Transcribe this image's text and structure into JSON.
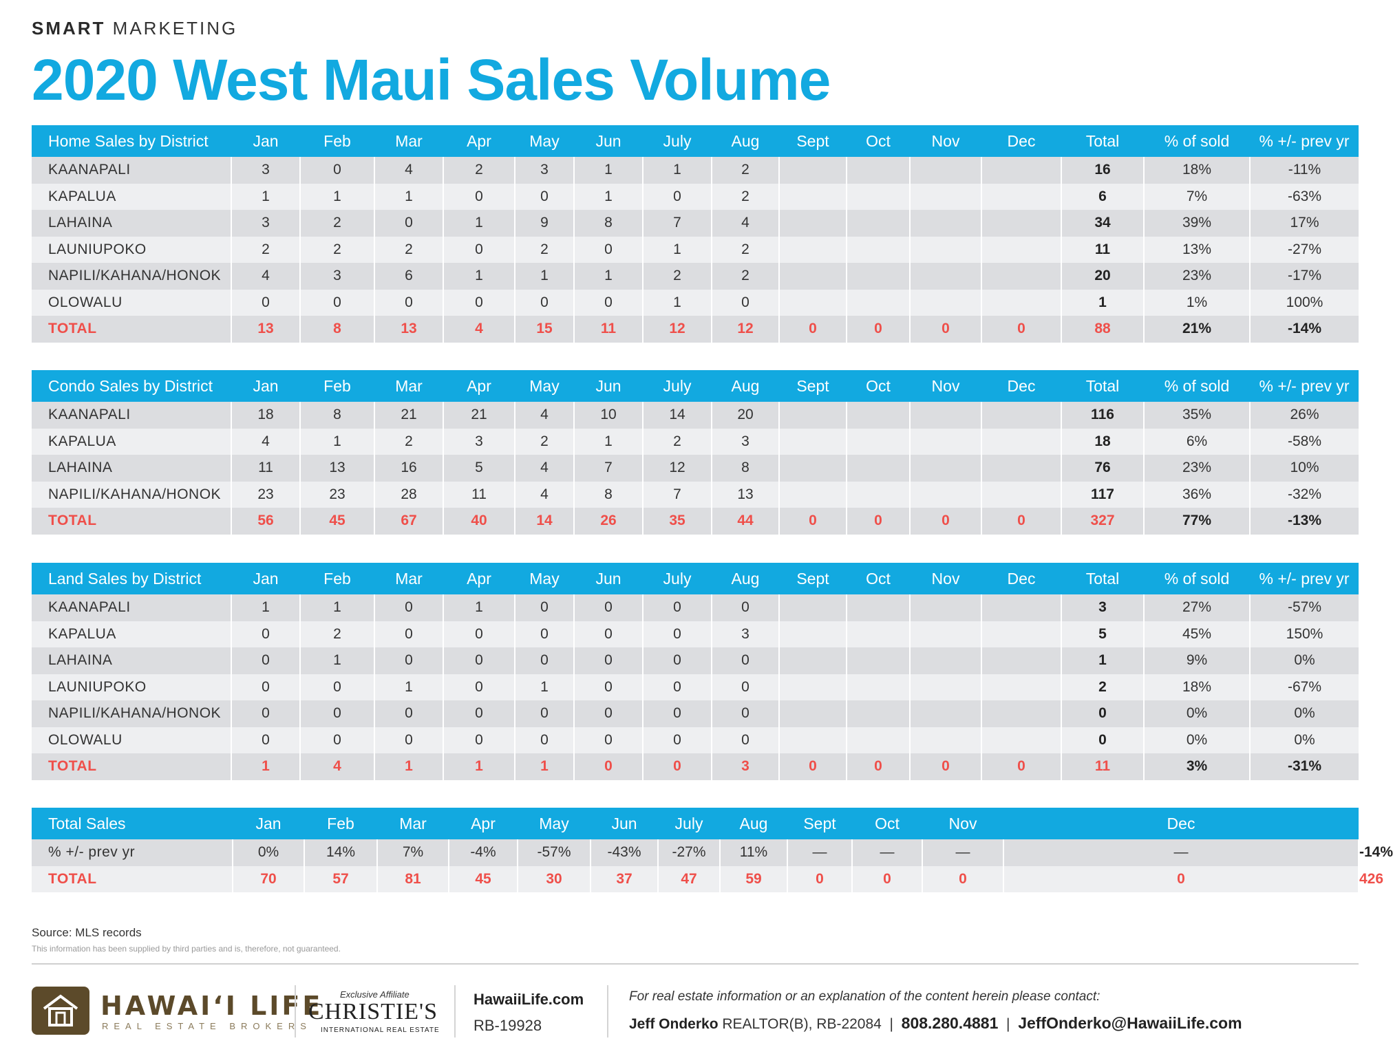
{
  "header": {
    "kicker_bold": "SMART",
    "kicker_rest": "MARKETING",
    "title": "2020 West Maui Sales Volume"
  },
  "months": [
    "Jan",
    "Feb",
    "Mar",
    "Apr",
    "May",
    "Jun",
    "July",
    "Aug",
    "Sept",
    "Oct",
    "Nov",
    "Dec"
  ],
  "labels": {
    "total": "Total",
    "pct_sold": "% of sold",
    "pct_prev": "% +/- prev yr"
  },
  "home": {
    "title": "Home Sales by District",
    "rows": [
      {
        "district": "KAANAPALI",
        "m": [
          "3",
          "0",
          "4",
          "2",
          "3",
          "1",
          "1",
          "2",
          "",
          "",
          "",
          ""
        ],
        "total": "16",
        "pct": "18%",
        "prev": "-11%"
      },
      {
        "district": "KAPALUA",
        "m": [
          "1",
          "1",
          "1",
          "0",
          "0",
          "1",
          "0",
          "2",
          "",
          "",
          "",
          ""
        ],
        "total": "6",
        "pct": "7%",
        "prev": "-63%"
      },
      {
        "district": "LAHAINA",
        "m": [
          "3",
          "2",
          "0",
          "1",
          "9",
          "8",
          "7",
          "4",
          "",
          "",
          "",
          ""
        ],
        "total": "34",
        "pct": "39%",
        "prev": "17%"
      },
      {
        "district": "LAUNIUPOKO",
        "m": [
          "2",
          "2",
          "2",
          "0",
          "2",
          "0",
          "1",
          "2",
          "",
          "",
          "",
          ""
        ],
        "total": "11",
        "pct": "13%",
        "prev": "-27%"
      },
      {
        "district": "NAPILI/KAHANA/HONOK",
        "m": [
          "4",
          "3",
          "6",
          "1",
          "1",
          "1",
          "2",
          "2",
          "",
          "",
          "",
          ""
        ],
        "total": "20",
        "pct": "23%",
        "prev": "-17%"
      },
      {
        "district": "OLOWALU",
        "m": [
          "0",
          "0",
          "0",
          "0",
          "0",
          "0",
          "1",
          "0",
          "",
          "",
          "",
          ""
        ],
        "total": "1",
        "pct": "1%",
        "prev": "100%"
      }
    ],
    "total": {
      "label": "TOTAL",
      "m": [
        "13",
        "8",
        "13",
        "4",
        "15",
        "11",
        "12",
        "12",
        "0",
        "0",
        "0",
        "0"
      ],
      "total": "88",
      "pct": "21%",
      "prev": "-14%"
    }
  },
  "condo": {
    "title": "Condo Sales by District",
    "rows": [
      {
        "district": "KAANAPALI",
        "m": [
          "18",
          "8",
          "21",
          "21",
          "4",
          "10",
          "14",
          "20",
          "",
          "",
          "",
          ""
        ],
        "total": "116",
        "pct": "35%",
        "prev": "26%"
      },
      {
        "district": "KAPALUA",
        "m": [
          "4",
          "1",
          "2",
          "3",
          "2",
          "1",
          "2",
          "3",
          "",
          "",
          "",
          ""
        ],
        "total": "18",
        "pct": "6%",
        "prev": "-58%"
      },
      {
        "district": "LAHAINA",
        "m": [
          "11",
          "13",
          "16",
          "5",
          "4",
          "7",
          "12",
          "8",
          "",
          "",
          "",
          ""
        ],
        "total": "76",
        "pct": "23%",
        "prev": "10%"
      },
      {
        "district": "NAPILI/KAHANA/HONOK",
        "m": [
          "23",
          "23",
          "28",
          "11",
          "4",
          "8",
          "7",
          "13",
          "",
          "",
          "",
          ""
        ],
        "total": "117",
        "pct": "36%",
        "prev": "-32%"
      }
    ],
    "total": {
      "label": "TOTAL",
      "m": [
        "56",
        "45",
        "67",
        "40",
        "14",
        "26",
        "35",
        "44",
        "0",
        "0",
        "0",
        "0"
      ],
      "total": "327",
      "pct": "77%",
      "prev": "-13%"
    }
  },
  "land": {
    "title": "Land Sales by District",
    "rows": [
      {
        "district": "KAANAPALI",
        "m": [
          "1",
          "1",
          "0",
          "1",
          "0",
          "0",
          "0",
          "0",
          "",
          "",
          "",
          ""
        ],
        "total": "3",
        "pct": "27%",
        "prev": "-57%"
      },
      {
        "district": "KAPALUA",
        "m": [
          "0",
          "2",
          "0",
          "0",
          "0",
          "0",
          "0",
          "3",
          "",
          "",
          "",
          ""
        ],
        "total": "5",
        "pct": "45%",
        "prev": "150%"
      },
      {
        "district": "LAHAINA",
        "m": [
          "0",
          "1",
          "0",
          "0",
          "0",
          "0",
          "0",
          "0",
          "",
          "",
          "",
          ""
        ],
        "total": "1",
        "pct": "9%",
        "prev": "0%"
      },
      {
        "district": "LAUNIUPOKO",
        "m": [
          "0",
          "0",
          "1",
          "0",
          "1",
          "0",
          "0",
          "0",
          "",
          "",
          "",
          ""
        ],
        "total": "2",
        "pct": "18%",
        "prev": "-67%"
      },
      {
        "district": "NAPILI/KAHANA/HONOK",
        "m": [
          "0",
          "0",
          "0",
          "0",
          "0",
          "0",
          "0",
          "0",
          "",
          "",
          "",
          ""
        ],
        "total": "0",
        "pct": "0%",
        "prev": "0%"
      },
      {
        "district": "OLOWALU",
        "m": [
          "0",
          "0",
          "0",
          "0",
          "0",
          "0",
          "0",
          "0",
          "",
          "",
          "",
          ""
        ],
        "total": "0",
        "pct": "0%",
        "prev": "0%"
      }
    ],
    "total": {
      "label": "TOTAL",
      "m": [
        "1",
        "4",
        "1",
        "1",
        "1",
        "0",
        "0",
        "3",
        "0",
        "0",
        "0",
        "0"
      ],
      "total": "11",
      "pct": "3%",
      "prev": "-31%"
    }
  },
  "summary": {
    "title": "Total Sales",
    "prev_label": "% +/- prev yr",
    "prev": [
      "0%",
      "14%",
      "7%",
      "-4%",
      "-57%",
      "-43%",
      "-27%",
      "11%",
      "—",
      "—",
      "—",
      "—"
    ],
    "prev_total": "-14%",
    "total_label": "TOTAL",
    "totals": [
      "70",
      "57",
      "81",
      "45",
      "30",
      "37",
      "47",
      "59",
      "0",
      "0",
      "0",
      "0"
    ],
    "grand_total": "426"
  },
  "footer": {
    "source": "Source: MLS records",
    "disclaimer": "This information has been supplied by third parties and is, therefore, not guaranteed.",
    "brand_name": "HAWAI‘I LIFE",
    "brand_sub": "REAL ESTATE BROKERS",
    "affiliate_small": "Exclusive Affiliate",
    "affiliate_big": "CHRISTIE'S",
    "affiliate_sub": "INTERNATIONAL REAL ESTATE",
    "site": "HawaiiLife.com",
    "license": "RB-19928",
    "contact_intro": "For real estate information or an explanation of the content herein please contact:",
    "agent_name": "Jeff Onderko",
    "agent_title": "REALTOR(B), RB-22084",
    "phone": "808.280.4881",
    "email": "JeffOnderko@HawaiiLife.com",
    "separator": "|"
  }
}
